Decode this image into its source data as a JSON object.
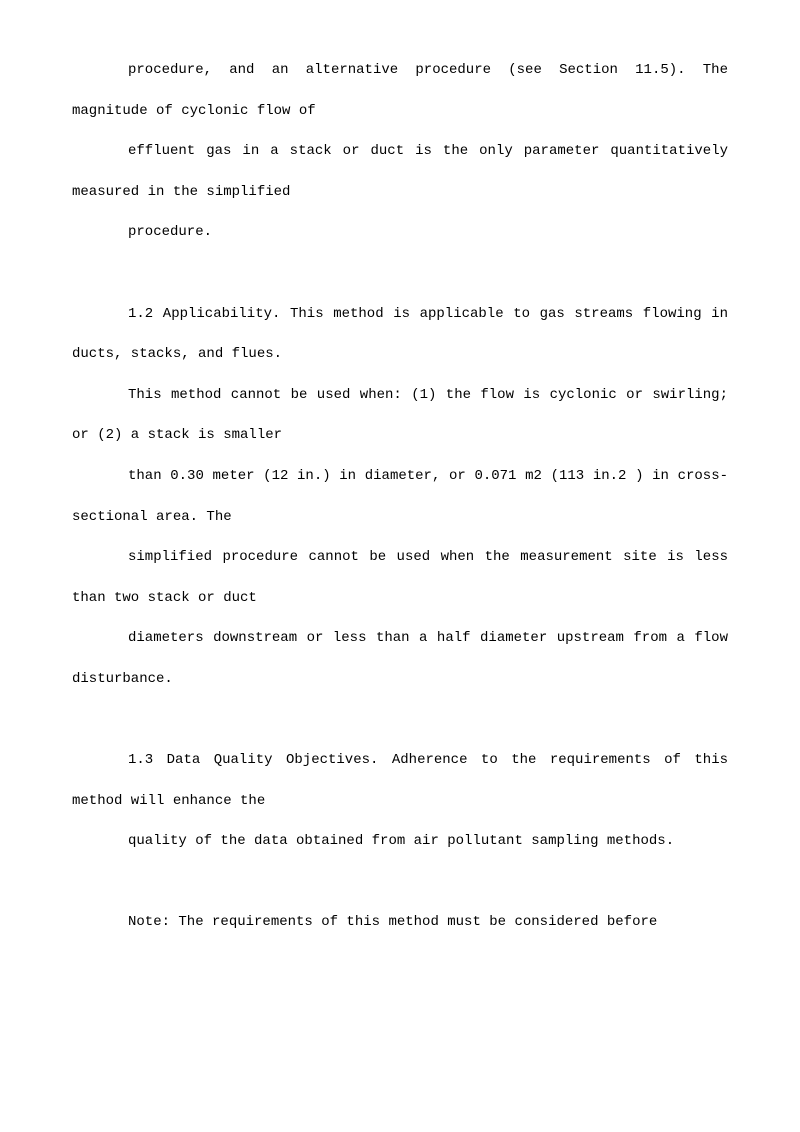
{
  "background_color": "#ffffff",
  "text_color": "#000000",
  "font_family": "SimSun / monospace",
  "font_size_pt": 10.5,
  "line_height": 2.9,
  "indent_chars": 4,
  "paragraphs": {
    "p1": "procedure, and an alternative procedure (see Section 11.5). The magnitude of cyclonic flow of",
    "p2": "effluent gas in a stack or duct is the only parameter quantitatively measured in the simplified",
    "p3": "procedure.",
    "p4": "1.2  Applicability. This method is applicable to gas streams flowing in ducts, stacks, and flues.",
    "p5": "This method cannot be used when: (1) the flow is cyclonic or swirling; or (2) a stack is smaller",
    "p6": "than 0.30 meter (12 in.) in diameter, or 0.071 m2 (113 in.2 ) in cross-sectional area. The",
    "p7": "simplified procedure cannot be used when the measurement site is less than two stack or duct",
    "p8": "diameters downstream or less than a half diameter upstream from a flow disturbance.",
    "p9": "1.3  Data Quality Objectives. Adherence to the requirements of this method will enhance the",
    "p10": "quality of the data obtained from air pollutant sampling methods.",
    "p11": "Note: The requirements of this method must be considered before"
  }
}
